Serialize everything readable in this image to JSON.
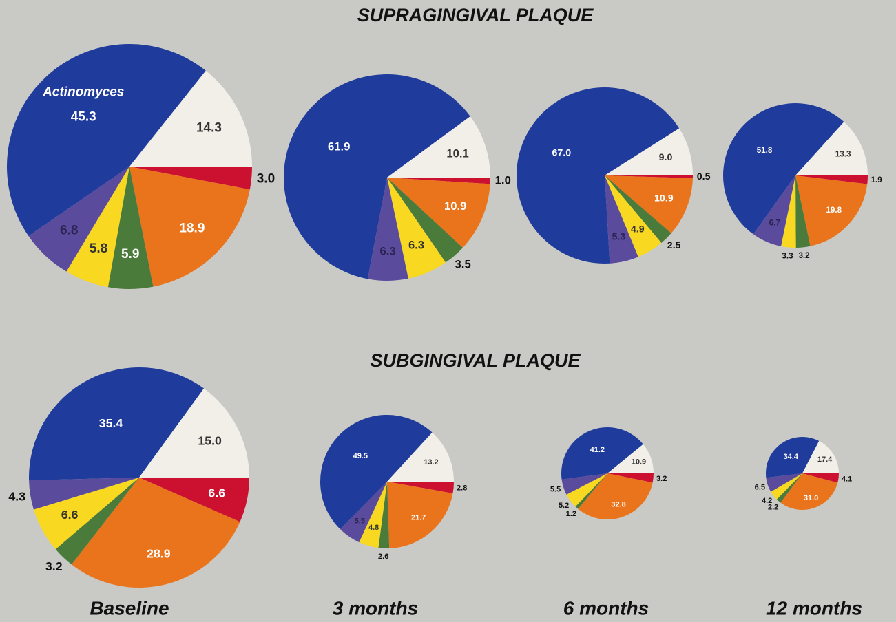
{
  "headings": [
    "SUPRAGINGIVAL PLAQUE",
    "SUBGINGIVAL PLAQUE"
  ],
  "columns": [
    "Baseline",
    "3 months",
    "6 months",
    "12 months"
  ],
  "chart_data": [
    {
      "type": "pie",
      "categories": [
        "Actinomyces",
        null,
        null,
        null,
        null,
        null,
        null
      ],
      "values": [
        45.3,
        14.3,
        3.0,
        18.9,
        5.9,
        5.8,
        6.8
      ],
      "value_labels": [
        "45.3",
        "14.3",
        "3.0",
        "18.9",
        "5.9",
        "5.8",
        "6.8"
      ],
      "colors": [
        "#1f3b9b",
        "#f1efe8",
        "#cc1030",
        "#ea741c",
        "#4b7b3b",
        "#f8d820",
        "#5b4b9d"
      ]
    },
    {
      "type": "pie",
      "categories": [
        null,
        null,
        null,
        null,
        null,
        null,
        null
      ],
      "values": [
        61.9,
        10.1,
        1.0,
        10.9,
        3.5,
        6.3,
        6.3
      ],
      "value_labels": [
        "61.9",
        "10.1",
        "1.0",
        "10.9",
        "3.5",
        "6.3",
        "6.3"
      ],
      "colors": [
        "#1f3b9b",
        "#f1efe8",
        "#cc1030",
        "#ea741c",
        "#4b7b3b",
        "#f8d820",
        "#5b4b9d"
      ]
    },
    {
      "type": "pie",
      "categories": [
        null,
        null,
        null,
        null,
        null,
        null,
        null
      ],
      "values": [
        67.0,
        9.0,
        0.5,
        10.9,
        2.5,
        4.9,
        5.3
      ],
      "value_labels": [
        "67.0",
        "9.0",
        "0.5",
        "10.9",
        "2.5",
        "4.9",
        "5.3"
      ],
      "colors": [
        "#1f3b9b",
        "#f1efe8",
        "#cc1030",
        "#ea741c",
        "#4b7b3b",
        "#f8d820",
        "#5b4b9d"
      ]
    },
    {
      "type": "pie",
      "categories": [
        null,
        null,
        null,
        null,
        null,
        null,
        null
      ],
      "values": [
        51.8,
        13.3,
        1.9,
        19.8,
        3.2,
        3.3,
        6.7
      ],
      "value_labels": [
        "51.8",
        "13.3",
        "1.9",
        "19.8",
        "3.2",
        "3.3",
        "6.7"
      ],
      "colors": [
        "#1f3b9b",
        "#f1efe8",
        "#cc1030",
        "#ea741c",
        "#4b7b3b",
        "#f8d820",
        "#5b4b9d"
      ]
    },
    {
      "type": "pie",
      "categories": [
        null,
        null,
        null,
        null,
        null,
        null,
        null
      ],
      "values": [
        35.4,
        15.0,
        6.6,
        28.9,
        3.2,
        6.6,
        4.3
      ],
      "value_labels": [
        "35.4",
        "15.0",
        "6.6",
        "28.9",
        "3.2",
        "6.6",
        "4.3"
      ],
      "colors": [
        "#1f3b9b",
        "#f1efe8",
        "#cc1030",
        "#ea741c",
        "#4b7b3b",
        "#f8d820",
        "#5b4b9d"
      ]
    },
    {
      "type": "pie",
      "categories": [
        null,
        null,
        null,
        null,
        null,
        null,
        null
      ],
      "values": [
        49.5,
        13.2,
        2.8,
        21.7,
        2.6,
        4.8,
        5.5
      ],
      "value_labels": [
        "49.5",
        "13.2",
        "2.8",
        "21.7",
        "2.6",
        "4.8",
        "5.5"
      ],
      "colors": [
        "#1f3b9b",
        "#f1efe8",
        "#cc1030",
        "#ea741c",
        "#4b7b3b",
        "#f8d820",
        "#5b4b9d"
      ]
    },
    {
      "type": "pie",
      "categories": [
        null,
        null,
        null,
        null,
        null,
        null,
        null
      ],
      "values": [
        41.2,
        10.9,
        3.2,
        32.8,
        1.2,
        5.2,
        5.5
      ],
      "value_labels": [
        "41.2",
        "10.9",
        "3.2",
        "32.8",
        "1.2",
        "5.2",
        "5.5"
      ],
      "colors": [
        "#1f3b9b",
        "#f1efe8",
        "#cc1030",
        "#ea741c",
        "#4b7b3b",
        "#f8d820",
        "#5b4b9d"
      ]
    },
    {
      "type": "pie",
      "categories": [
        null,
        null,
        null,
        null,
        null,
        null,
        null
      ],
      "values": [
        34.4,
        17.4,
        4.1,
        31.0,
        2.2,
        4.2,
        6.5
      ],
      "value_labels": [
        "34.4",
        "17.4",
        "4.1",
        "31.0",
        "2.2",
        "4.2",
        "6.5"
      ],
      "colors": [
        "#1f3b9b",
        "#f1efe8",
        "#cc1030",
        "#ea741c",
        "#4b7b3b",
        "#f8d820",
        "#5b4b9d"
      ]
    }
  ]
}
